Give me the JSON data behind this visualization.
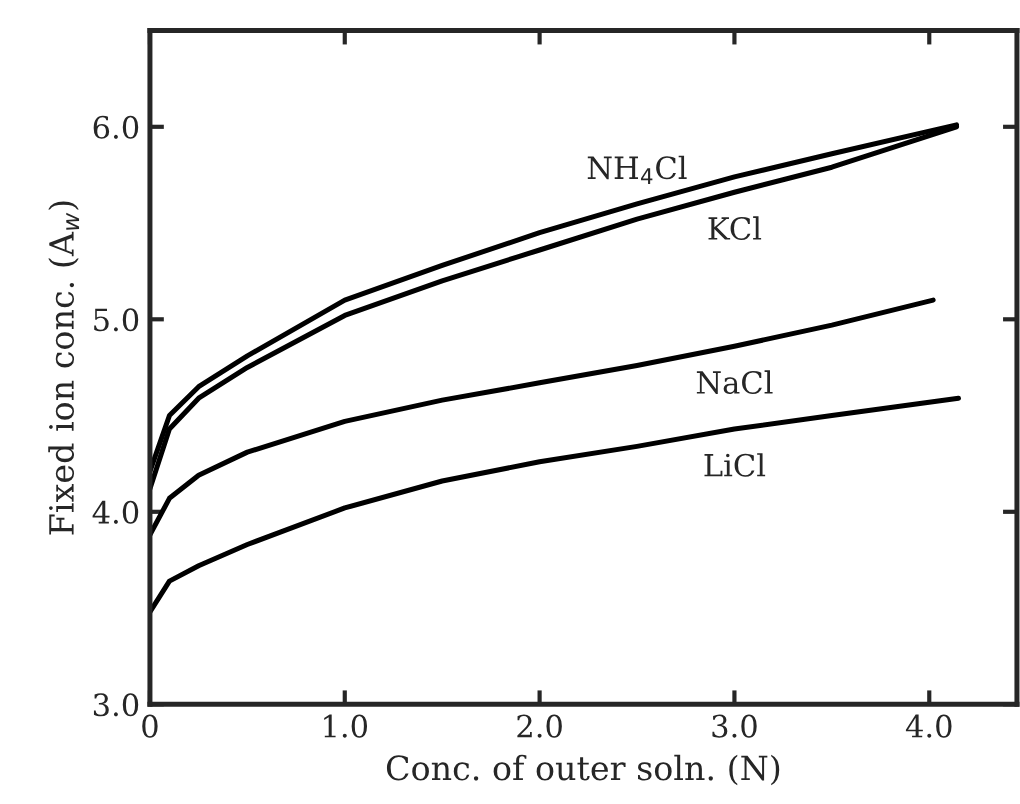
{
  "chart_data": {
    "type": "line",
    "xlabel": "Conc. of outer soln. (N)",
    "ylabel": "Fixed ion conc. (A$_{w}$)",
    "xlim": [
      0,
      4.45
    ],
    "ylim": [
      3.0,
      6.5
    ],
    "xticks": [
      0,
      {
        "value": 1,
        "label": "1.0"
      },
      {
        "value": 2,
        "label": "2.0"
      },
      {
        "value": 3,
        "label": "3.0"
      },
      {
        "value": 4,
        "label": "4.0"
      }
    ],
    "yticks": [
      {
        "value": 3,
        "label": "3.0"
      },
      {
        "value": 4,
        "label": "4.0"
      },
      {
        "value": 5,
        "label": "5.0"
      },
      {
        "value": 6,
        "label": "6.0"
      }
    ],
    "grid": false,
    "legend": false,
    "marker": "none",
    "line_style": "solid",
    "series": [
      {
        "name": "NH$_{4}$Cl",
        "color": "#000000",
        "x": [
          0,
          0.1,
          0.25,
          0.5,
          1.0,
          1.5,
          2.0,
          2.5,
          3.0,
          3.5,
          4.14
        ],
        "values": [
          4.21,
          4.5,
          4.65,
          4.81,
          5.1,
          5.28,
          5.45,
          5.6,
          5.74,
          5.86,
          6.01
        ]
      },
      {
        "name": "KCl",
        "color": "#000000",
        "x": [
          0,
          0.1,
          0.25,
          0.5,
          1.0,
          1.5,
          2.0,
          2.5,
          3.0,
          3.5,
          4.14
        ],
        "values": [
          4.12,
          4.43,
          4.59,
          4.75,
          5.02,
          5.2,
          5.36,
          5.52,
          5.66,
          5.79,
          6.0
        ]
      },
      {
        "name": "NaCl",
        "color": "#000000",
        "x": [
          0,
          0.1,
          0.25,
          0.5,
          1.0,
          1.5,
          2.0,
          2.5,
          3.0,
          3.5,
          4.02
        ],
        "values": [
          3.88,
          4.07,
          4.19,
          4.31,
          4.47,
          4.58,
          4.67,
          4.76,
          4.86,
          4.97,
          5.1
        ]
      },
      {
        "name": "LiCl",
        "color": "#000000",
        "x": [
          0,
          0.1,
          0.25,
          0.5,
          1.0,
          1.5,
          2.0,
          2.5,
          3.0,
          3.5,
          4.15
        ],
        "values": [
          3.48,
          3.64,
          3.72,
          3.83,
          4.02,
          4.16,
          4.26,
          4.34,
          4.43,
          4.5,
          4.59
        ]
      }
    ]
  }
}
